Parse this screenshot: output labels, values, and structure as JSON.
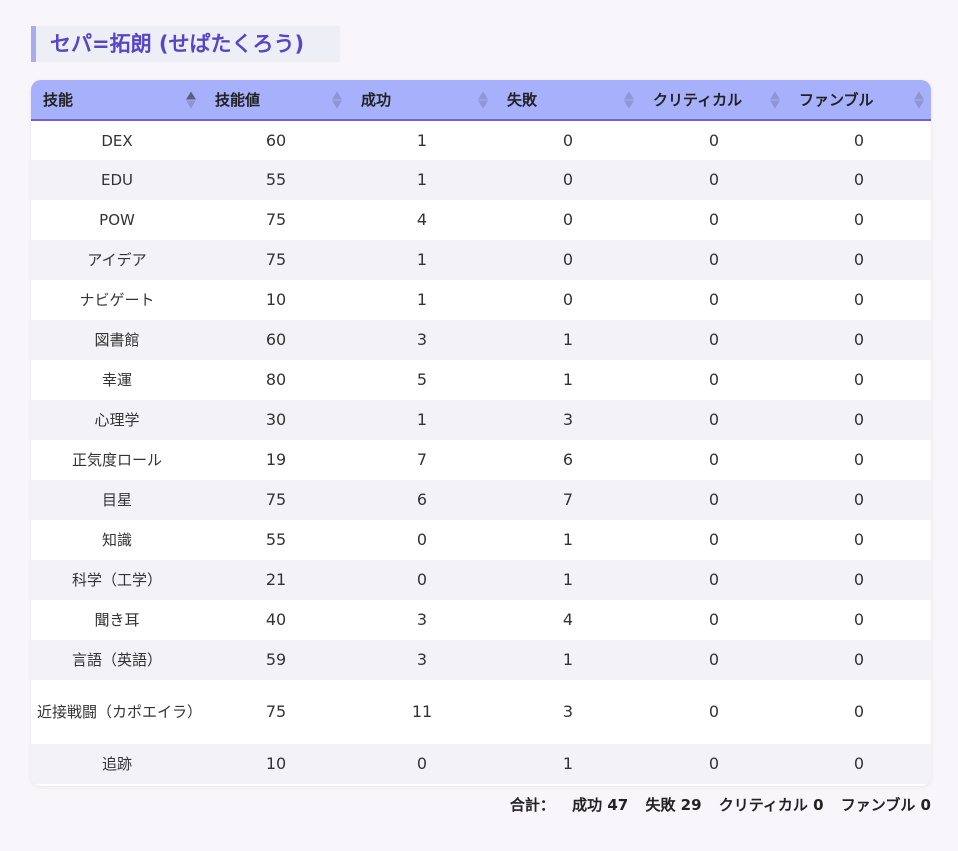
{
  "title": "セパ=拓朗 (せぱたくろう)",
  "columns": [
    {
      "label": "技能",
      "sort": "asc"
    },
    {
      "label": "技能値",
      "sort": "none"
    },
    {
      "label": "成功",
      "sort": "none"
    },
    {
      "label": "失敗",
      "sort": "none"
    },
    {
      "label": "クリティカル",
      "sort": "none"
    },
    {
      "label": "ファンブル",
      "sort": "none"
    }
  ],
  "rows": [
    {
      "skill": "DEX",
      "value": "60",
      "success": "1",
      "failure": "0",
      "critical": "0",
      "fumble": "0"
    },
    {
      "skill": "EDU",
      "value": "55",
      "success": "1",
      "failure": "0",
      "critical": "0",
      "fumble": "0"
    },
    {
      "skill": "POW",
      "value": "75",
      "success": "4",
      "failure": "0",
      "critical": "0",
      "fumble": "0"
    },
    {
      "skill": "アイデア",
      "value": "75",
      "success": "1",
      "failure": "0",
      "critical": "0",
      "fumble": "0"
    },
    {
      "skill": "ナビゲート",
      "value": "10",
      "success": "1",
      "failure": "0",
      "critical": "0",
      "fumble": "0"
    },
    {
      "skill": "図書館",
      "value": "60",
      "success": "3",
      "failure": "1",
      "critical": "0",
      "fumble": "0"
    },
    {
      "skill": "幸運",
      "value": "80",
      "success": "5",
      "failure": "1",
      "critical": "0",
      "fumble": "0"
    },
    {
      "skill": "心理学",
      "value": "30",
      "success": "1",
      "failure": "3",
      "critical": "0",
      "fumble": "0"
    },
    {
      "skill": "正気度ロール",
      "value": "19",
      "success": "7",
      "failure": "6",
      "critical": "0",
      "fumble": "0"
    },
    {
      "skill": "目星",
      "value": "75",
      "success": "6",
      "failure": "7",
      "critical": "0",
      "fumble": "0"
    },
    {
      "skill": "知識",
      "value": "55",
      "success": "0",
      "failure": "1",
      "critical": "0",
      "fumble": "0"
    },
    {
      "skill": "科学（工学）",
      "value": "21",
      "success": "0",
      "failure": "1",
      "critical": "0",
      "fumble": "0"
    },
    {
      "skill": "聞き耳",
      "value": "40",
      "success": "3",
      "failure": "4",
      "critical": "0",
      "fumble": "0"
    },
    {
      "skill": "言語（英語）",
      "value": "59",
      "success": "3",
      "failure": "1",
      "critical": "0",
      "fumble": "0"
    },
    {
      "skill": "近接戦闘（カポエイラ）",
      "value": "75",
      "success": "11",
      "failure": "3",
      "critical": "0",
      "fumble": "0"
    },
    {
      "skill": "追跡",
      "value": "10",
      "success": "0",
      "failure": "1",
      "critical": "0",
      "fumble": "0"
    }
  ],
  "summary": {
    "label": "合計：",
    "success": "成功 47",
    "failure": "失敗 29",
    "critical": "クリティカル 0",
    "fumble": "ファンブル 0"
  },
  "colors": {
    "accent": "#5546c7",
    "header_bg": "#a6b0fb",
    "title_border": "#a5acf0"
  }
}
